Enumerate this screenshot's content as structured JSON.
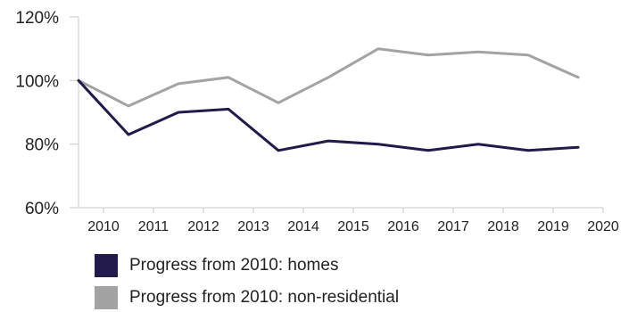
{
  "chart_data": {
    "type": "line",
    "title": "",
    "xlabel": "",
    "ylabel": "",
    "ylim": [
      60,
      120
    ],
    "yticks": [
      "60%",
      "80%",
      "100%",
      "120%"
    ],
    "x_tick_labels": [
      "2010",
      "2011",
      "2012",
      "2013",
      "2014",
      "2015",
      "2016",
      "2017",
      "2018",
      "2019",
      "2020"
    ],
    "x": [
      2009.5,
      2010.5,
      2011.5,
      2012.5,
      2013.5,
      2014.5,
      2015.5,
      2016.5,
      2017.5,
      2018.5,
      2019.5
    ],
    "grid": false,
    "legend_position": "bottom-left",
    "series": [
      {
        "name": "Progress from 2010: homes",
        "color": "#221a4a",
        "values": [
          100,
          83,
          90,
          91,
          78,
          81,
          80,
          78,
          80,
          78,
          79
        ]
      },
      {
        "name": "Progress from 2010: non-residential",
        "color": "#a3a3a3",
        "values": [
          100,
          92,
          99,
          101,
          93,
          101,
          110,
          108,
          109,
          108,
          101
        ]
      }
    ]
  }
}
